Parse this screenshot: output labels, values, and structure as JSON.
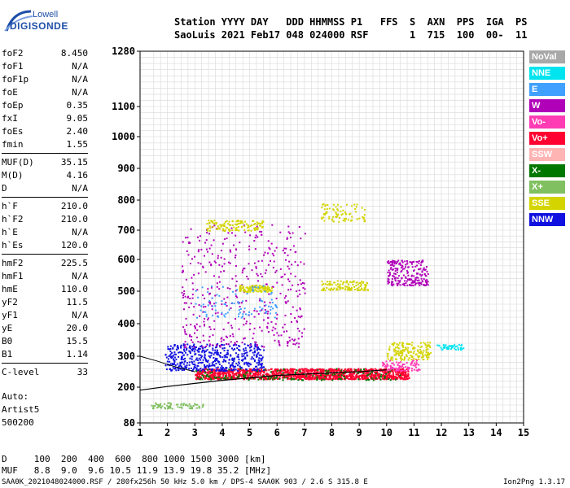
{
  "logo": {
    "brand": "Lowell",
    "product": "DIGISONDE"
  },
  "header": {
    "line1": "Station YYYY DAY   DDD HHMMSS P1   FFS  S  AXN  PPS  IGA  PS",
    "line2": "SaoLuis 2021 Feb17 048 024000 RSF       1  715  100  00-  11"
  },
  "params": {
    "group1": [
      {
        "k": "foF2",
        "v": "8.450"
      },
      {
        "k": "foF1",
        "v": "N/A"
      },
      {
        "k": "foF1p",
        "v": "N/A"
      },
      {
        "k": "foE",
        "v": "N/A"
      },
      {
        "k": "foEp",
        "v": "0.35"
      },
      {
        "k": "fxI",
        "v": "9.05"
      },
      {
        "k": "foEs",
        "v": "2.40"
      },
      {
        "k": "fmin",
        "v": "1.55"
      }
    ],
    "group2": [
      {
        "k": "MUF(D)",
        "v": "35.15"
      },
      {
        "k": "M(D)",
        "v": "4.16"
      },
      {
        "k": "D",
        "v": "N/A"
      }
    ],
    "group3": [
      {
        "k": "h`F",
        "v": "210.0"
      },
      {
        "k": "h`F2",
        "v": "210.0"
      },
      {
        "k": "h`E",
        "v": "N/A"
      },
      {
        "k": "h`Es",
        "v": "120.0"
      }
    ],
    "group4": [
      {
        "k": "hmF2",
        "v": "225.5"
      },
      {
        "k": "hmF1",
        "v": "N/A"
      },
      {
        "k": "hmE",
        "v": "110.0"
      },
      {
        "k": "yF2",
        "v": "11.5"
      },
      {
        "k": "yF1",
        "v": "N/A"
      },
      {
        "k": "yE",
        "v": "20.0"
      },
      {
        "k": "B0",
        "v": "15.5"
      },
      {
        "k": "B1",
        "v": "1.14"
      }
    ],
    "group5": [
      {
        "k": "C-level",
        "v": "33"
      }
    ]
  },
  "auto": {
    "l1": "Auto:",
    "l2": "Artist5",
    "l3": "500200"
  },
  "legend": [
    {
      "label": "NoVal",
      "color": "#a8a8a8"
    },
    {
      "label": "NNE",
      "color": "#00e4f0"
    },
    {
      "label": "E",
      "color": "#3fa0ff"
    },
    {
      "label": "W",
      "color": "#b000b8"
    },
    {
      "label": "Vo-",
      "color": "#ff3cb4"
    },
    {
      "label": "Vo+",
      "color": "#ff0030"
    },
    {
      "label": "SSW",
      "color": "#ffb4b4"
    },
    {
      "label": "X-",
      "color": "#007800"
    },
    {
      "label": "X+",
      "color": "#80c060"
    },
    {
      "label": "SSE",
      "color": "#d4d400"
    },
    {
      "label": "NNW",
      "color": "#1010e0"
    }
  ],
  "footer": {
    "line1": "D     100  200  400  600  800 1000 1500 3000 [km]",
    "line2": "MUF   8.8  9.0  9.6 10.5 11.9 13.9 19.8 35.2 [MHz]",
    "line3": "SAA0K_2021048024000.RSF / 280fx256h 50 kHz 5.0 km / DPS-4 SAA0K 903 / 2.6 S 315.8 E",
    "version": "Ion2Png 1.3.17"
  },
  "chart_data": {
    "type": "scatter",
    "title": "",
    "xlabel": "",
    "ylabel": "",
    "xlim": [
      1,
      15
    ],
    "ylim": [
      80,
      1280
    ],
    "x_ticks": [
      "1",
      "2",
      "3",
      "4",
      "5",
      "6",
      "7",
      "8",
      "9",
      "10",
      "11",
      "12",
      "13",
      "14",
      "15"
    ],
    "y_ticks": [
      "80",
      "200",
      "300",
      "400",
      "500",
      "600",
      "700",
      "800",
      "900",
      "1000",
      "1100",
      "1280"
    ],
    "y_tick_values": [
      80,
      200,
      300,
      400,
      500,
      600,
      700,
      800,
      900,
      1000,
      1100,
      1280
    ],
    "grid": true,
    "legend_position": "right",
    "clusters": [
      {
        "mode": "Vo+",
        "color": "#ff0030",
        "x": [
          3.0,
          10.8
        ],
        "y": [
          228,
          262
        ],
        "n": 1400
      },
      {
        "mode": "NNW",
        "color": "#1010e0",
        "x": [
          1.9,
          5.5
        ],
        "y": [
          255,
          340
        ],
        "n": 500
      },
      {
        "mode": "W",
        "color": "#b000b8",
        "x": [
          2.5,
          7.0
        ],
        "y": [
          330,
          720
        ],
        "n": 450
      },
      {
        "mode": "SSE",
        "color": "#d4d400",
        "x": [
          3.4,
          5.5
        ],
        "y": [
          700,
          735
        ],
        "n": 120
      },
      {
        "mode": "SSE",
        "color": "#d4d400",
        "x": [
          4.6,
          5.8
        ],
        "y": [
          500,
          520
        ],
        "n": 110
      },
      {
        "mode": "SSE",
        "color": "#d4d400",
        "x": [
          7.6,
          9.3
        ],
        "y": [
          505,
          535
        ],
        "n": 120
      },
      {
        "mode": "SSE",
        "color": "#d4d400",
        "x": [
          7.6,
          9.2
        ],
        "y": [
          730,
          790
        ],
        "n": 80
      },
      {
        "mode": "SSE",
        "color": "#d4d400",
        "x": [
          10.0,
          11.6
        ],
        "y": [
          290,
          345
        ],
        "n": 160
      },
      {
        "mode": "W",
        "color": "#b000b8",
        "x": [
          10.0,
          11.5
        ],
        "y": [
          520,
          600
        ],
        "n": 220
      },
      {
        "mode": "NNE",
        "color": "#00e4f0",
        "x": [
          11.8,
          12.8
        ],
        "y": [
          322,
          338
        ],
        "n": 45
      },
      {
        "mode": "X+",
        "color": "#80c060",
        "x": [
          1.4,
          3.3
        ],
        "y": [
          130,
          150
        ],
        "n": 70
      },
      {
        "mode": "X-",
        "color": "#007800",
        "x": [
          3.0,
          10.5
        ],
        "y": [
          225,
          262
        ],
        "n": 160
      },
      {
        "mode": "Vo-",
        "color": "#ff3cb4",
        "x": [
          9.8,
          11.2
        ],
        "y": [
          255,
          290
        ],
        "n": 90
      },
      {
        "mode": "E",
        "color": "#3fa0ff",
        "x": [
          3.0,
          6.0
        ],
        "y": [
          420,
          520
        ],
        "n": 90
      }
    ],
    "curve_x": [
      1.0,
      2.0,
      3.0,
      4.0,
      5.0,
      6.0,
      7.0,
      8.0,
      9.0,
      10.0
    ],
    "curve_y": [
      190,
      202,
      212,
      222,
      230,
      238,
      242,
      246,
      250,
      256
    ],
    "curve2_x": [
      1.0,
      1.6,
      2.2,
      3.0
    ],
    "curve2_y": [
      300,
      285,
      268,
      250
    ]
  }
}
